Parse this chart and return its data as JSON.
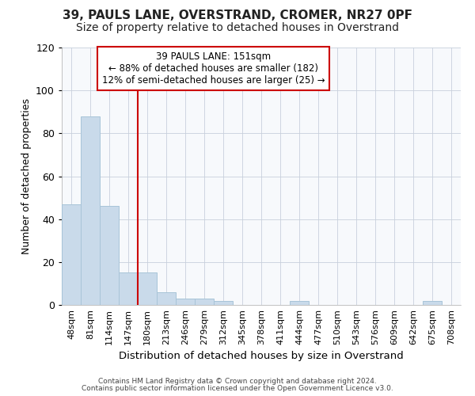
{
  "title": "39, PAULS LANE, OVERSTRAND, CROMER, NR27 0PF",
  "subtitle": "Size of property relative to detached houses in Overstrand",
  "xlabel": "Distribution of detached houses by size in Overstrand",
  "ylabel": "Number of detached properties",
  "categories": [
    "48sqm",
    "81sqm",
    "114sqm",
    "147sqm",
    "180sqm",
    "213sqm",
    "246sqm",
    "279sqm",
    "312sqm",
    "345sqm",
    "378sqm",
    "411sqm",
    "444sqm",
    "477sqm",
    "510sqm",
    "543sqm",
    "576sqm",
    "609sqm",
    "642sqm",
    "675sqm",
    "708sqm"
  ],
  "values": [
    47,
    88,
    46,
    15,
    15,
    6,
    3,
    3,
    2,
    0,
    0,
    0,
    2,
    0,
    0,
    0,
    0,
    0,
    0,
    2,
    0
  ],
  "bar_color": "#c9daea",
  "bar_edge_color": "#a8c4d8",
  "ylim": [
    0,
    120
  ],
  "yticks": [
    0,
    20,
    40,
    60,
    80,
    100,
    120
  ],
  "red_line_x": 3.5,
  "annotation_line1": "39 PAULS LANE: 151sqm",
  "annotation_line2": "← 88% of detached houses are smaller (182)",
  "annotation_line3": "12% of semi-detached houses are larger (25) →",
  "annotation_box_color": "#ffffff",
  "annotation_box_edge": "#cc0000",
  "red_line_color": "#cc0000",
  "footer_line1": "Contains HM Land Registry data © Crown copyright and database right 2024.",
  "footer_line2": "Contains public sector information licensed under the Open Government Licence v3.0.",
  "background_color": "#ffffff",
  "plot_bg_color": "#f7f9fc",
  "title_fontsize": 11,
  "subtitle_fontsize": 10,
  "tick_fontsize": 8,
  "grid_color": "#c8d0dc"
}
